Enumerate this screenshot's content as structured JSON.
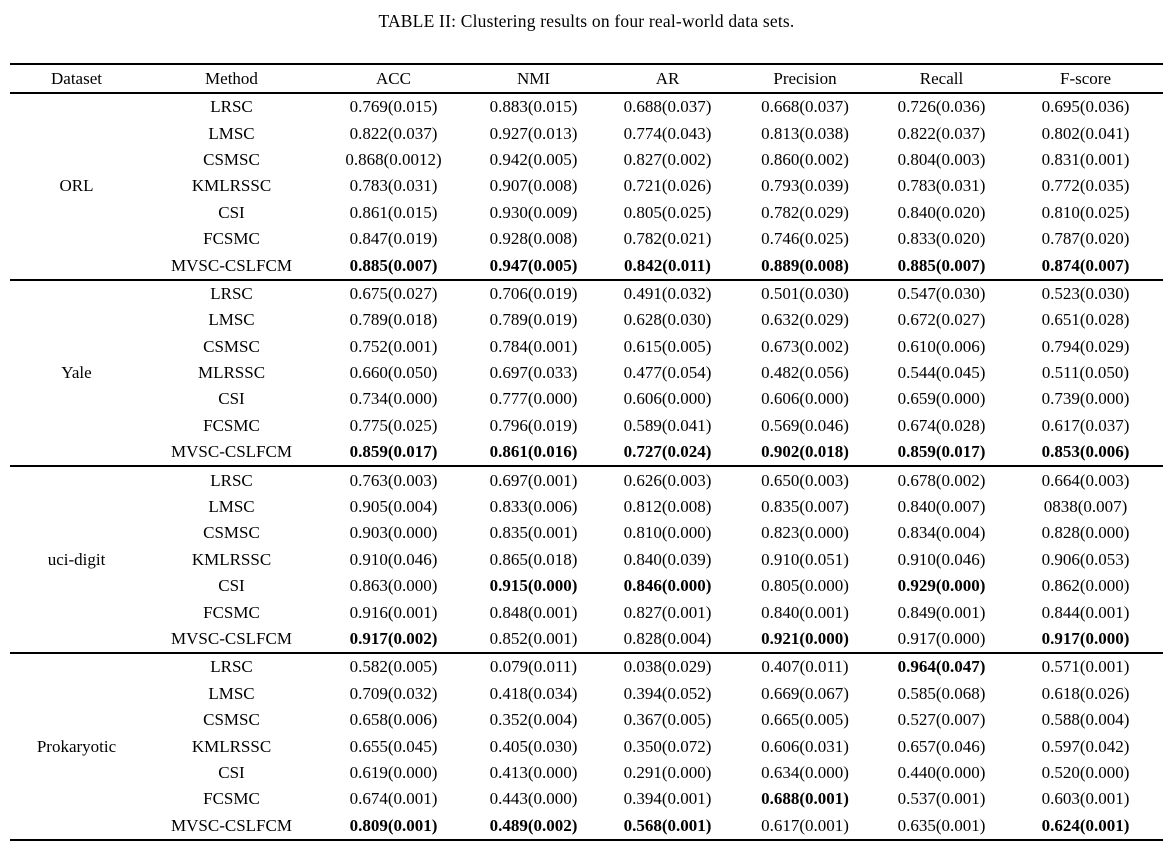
{
  "title": "TABLE II: Clustering results on four real-world data sets.",
  "colors": {
    "text": "#000000",
    "background": "#ffffff"
  },
  "table": {
    "columns": [
      "Dataset",
      "Method",
      "ACC",
      "NMI",
      "AR",
      "Precision",
      "Recall",
      "F-score"
    ],
    "groups": [
      {
        "dataset": "ORL",
        "rows": [
          {
            "method": "LRSC",
            "cells": [
              "0.769(0.015)",
              "0.883(0.015)",
              "0.688(0.037)",
              "0.668(0.037)",
              "0.726(0.036)",
              "0.695(0.036)"
            ],
            "bold": []
          },
          {
            "method": "LMSC",
            "cells": [
              "0.822(0.037)",
              "0.927(0.013)",
              "0.774(0.043)",
              "0.813(0.038)",
              "0.822(0.037)",
              "0.802(0.041)"
            ],
            "bold": []
          },
          {
            "method": "CSMSC",
            "cells": [
              "0.868(0.0012)",
              "0.942(0.005)",
              "0.827(0.002)",
              "0.860(0.002)",
              "0.804(0.003)",
              "0.831(0.001)"
            ],
            "bold": []
          },
          {
            "method": "KMLRSSC",
            "cells": [
              "0.783(0.031)",
              "0.907(0.008)",
              "0.721(0.026)",
              "0.793(0.039)",
              "0.783(0.031)",
              "0.772(0.035)"
            ],
            "bold": []
          },
          {
            "method": "CSI",
            "cells": [
              "0.861(0.015)",
              "0.930(0.009)",
              "0.805(0.025)",
              "0.782(0.029)",
              "0.840(0.020)",
              "0.810(0.025)"
            ],
            "bold": []
          },
          {
            "method": "FCSMC",
            "cells": [
              "0.847(0.019)",
              "0.928(0.008)",
              "0.782(0.021)",
              "0.746(0.025)",
              "0.833(0.020)",
              "0.787(0.020)"
            ],
            "bold": []
          },
          {
            "method": "MVSC-CSLFCM",
            "cells": [
              "0.885(0.007)",
              "0.947(0.005)",
              "0.842(0.011)",
              "0.889(0.008)",
              "0.885(0.007)",
              "0.874(0.007)"
            ],
            "bold": [
              0,
              1,
              2,
              3,
              4,
              5
            ]
          }
        ]
      },
      {
        "dataset": "Yale",
        "rows": [
          {
            "method": "LRSC",
            "cells": [
              "0.675(0.027)",
              "0.706(0.019)",
              "0.491(0.032)",
              "0.501(0.030)",
              "0.547(0.030)",
              "0.523(0.030)"
            ],
            "bold": []
          },
          {
            "method": "LMSC",
            "cells": [
              "0.789(0.018)",
              "0.789(0.019)",
              "0.628(0.030)",
              "0.632(0.029)",
              "0.672(0.027)",
              "0.651(0.028)"
            ],
            "bold": []
          },
          {
            "method": "CSMSC",
            "cells": [
              "0.752(0.001)",
              "0.784(0.001)",
              "0.615(0.005)",
              "0.673(0.002)",
              "0.610(0.006)",
              "0.794(0.029)"
            ],
            "bold": []
          },
          {
            "method": "MLRSSC",
            "cells": [
              "0.660(0.050)",
              "0.697(0.033)",
              "0.477(0.054)",
              "0.482(0.056)",
              "0.544(0.045)",
              "0.511(0.050)"
            ],
            "bold": []
          },
          {
            "method": "CSI",
            "cells": [
              "0.734(0.000)",
              "0.777(0.000)",
              "0.606(0.000)",
              "0.606(0.000)",
              "0.659(0.000)",
              "0.739(0.000)"
            ],
            "bold": []
          },
          {
            "method": "FCSMC",
            "cells": [
              "0.775(0.025)",
              "0.796(0.019)",
              "0.589(0.041)",
              "0.569(0.046)",
              "0.674(0.028)",
              "0.617(0.037)"
            ],
            "bold": []
          },
          {
            "method": "MVSC-CSLFCM",
            "cells": [
              "0.859(0.017)",
              "0.861(0.016)",
              "0.727(0.024)",
              "0.902(0.018)",
              "0.859(0.017)",
              "0.853(0.006)"
            ],
            "bold": [
              0,
              1,
              2,
              3,
              4,
              5
            ]
          }
        ]
      },
      {
        "dataset": "uci-digit",
        "rows": [
          {
            "method": "LRSC",
            "cells": [
              "0.763(0.003)",
              "0.697(0.001)",
              "0.626(0.003)",
              "0.650(0.003)",
              "0.678(0.002)",
              "0.664(0.003)"
            ],
            "bold": []
          },
          {
            "method": "LMSC",
            "cells": [
              "0.905(0.004)",
              "0.833(0.006)",
              "0.812(0.008)",
              "0.835(0.007)",
              "0.840(0.007)",
              "0838(0.007)"
            ],
            "bold": []
          },
          {
            "method": "CSMSC",
            "cells": [
              "0.903(0.000)",
              "0.835(0.001)",
              "0.810(0.000)",
              "0.823(0.000)",
              "0.834(0.004)",
              "0.828(0.000)"
            ],
            "bold": []
          },
          {
            "method": "KMLRSSC",
            "cells": [
              "0.910(0.046)",
              "0.865(0.018)",
              "0.840(0.039)",
              "0.910(0.051)",
              "0.910(0.046)",
              "0.906(0.053)"
            ],
            "bold": []
          },
          {
            "method": "CSI",
            "cells": [
              "0.863(0.000)",
              "0.915(0.000)",
              "0.846(0.000)",
              "0.805(0.000)",
              "0.929(0.000)",
              "0.862(0.000)"
            ],
            "bold": [
              1,
              2,
              4
            ]
          },
          {
            "method": "FCSMC",
            "cells": [
              "0.916(0.001)",
              "0.848(0.001)",
              "0.827(0.001)",
              "0.840(0.001)",
              "0.849(0.001)",
              "0.844(0.001)"
            ],
            "bold": []
          },
          {
            "method": "MVSC-CSLFCM",
            "cells": [
              "0.917(0.002)",
              "0.852(0.001)",
              "0.828(0.004)",
              "0.921(0.000)",
              "0.917(0.000)",
              "0.917(0.000)"
            ],
            "bold": [
              0,
              3,
              5
            ]
          }
        ]
      },
      {
        "dataset": "Prokaryotic",
        "rows": [
          {
            "method": "LRSC",
            "cells": [
              "0.582(0.005)",
              "0.079(0.011)",
              "0.038(0.029)",
              "0.407(0.011)",
              "0.964(0.047)",
              "0.571(0.001)"
            ],
            "bold": [
              4
            ]
          },
          {
            "method": "LMSC",
            "cells": [
              "0.709(0.032)",
              "0.418(0.034)",
              "0.394(0.052)",
              "0.669(0.067)",
              "0.585(0.068)",
              "0.618(0.026)"
            ],
            "bold": []
          },
          {
            "method": "CSMSC",
            "cells": [
              "0.658(0.006)",
              "0.352(0.004)",
              "0.367(0.005)",
              "0.665(0.005)",
              "0.527(0.007)",
              "0.588(0.004)"
            ],
            "bold": []
          },
          {
            "method": "KMLRSSC",
            "cells": [
              "0.655(0.045)",
              "0.405(0.030)",
              "0.350(0.072)",
              "0.606(0.031)",
              "0.657(0.046)",
              "0.597(0.042)"
            ],
            "bold": []
          },
          {
            "method": "CSI",
            "cells": [
              "0.619(0.000)",
              "0.413(0.000)",
              "0.291(0.000)",
              "0.634(0.000)",
              "0.440(0.000)",
              "0.520(0.000)"
            ],
            "bold": []
          },
          {
            "method": "FCSMC",
            "cells": [
              "0.674(0.001)",
              "0.443(0.000)",
              "0.394(0.001)",
              "0.688(0.001)",
              "0.537(0.001)",
              "0.603(0.001)"
            ],
            "bold": [
              3
            ]
          },
          {
            "method": "MVSC-CSLFCM",
            "cells": [
              "0.809(0.001)",
              "0.489(0.002)",
              "0.568(0.001)",
              "0.617(0.001)",
              "0.635(0.001)",
              "0.624(0.001)"
            ],
            "bold": [
              0,
              1,
              2,
              5
            ]
          }
        ]
      }
    ]
  }
}
